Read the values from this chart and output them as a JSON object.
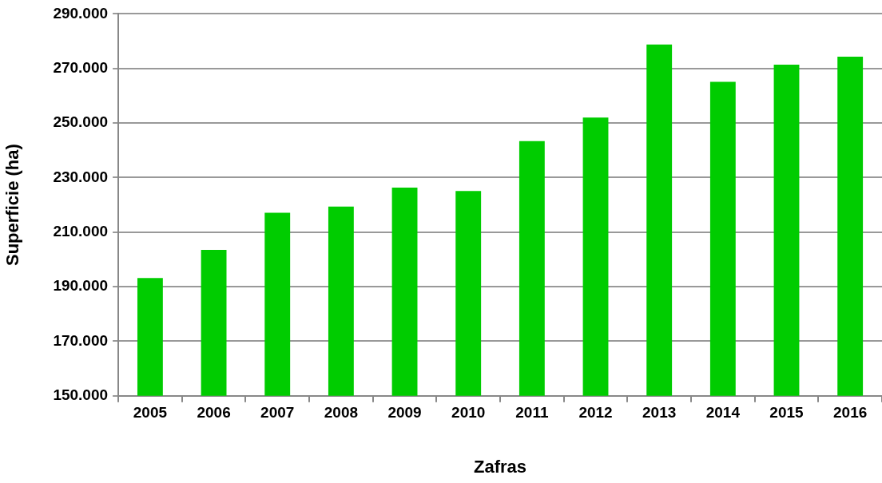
{
  "chart_data": {
    "type": "bar",
    "xlabel": "Zafras",
    "ylabel": "Superficie (ha)",
    "categories": [
      "2005",
      "2006",
      "2007",
      "2008",
      "2009",
      "2010",
      "2011",
      "2012",
      "2013",
      "2014",
      "2015",
      "2016"
    ],
    "values": [
      193200,
      203500,
      217100,
      219400,
      226300,
      225100,
      243400,
      252000,
      278800,
      265100,
      271400,
      274300
    ],
    "color": "#00cc00",
    "ylim": [
      150000,
      290000
    ],
    "yticks": [
      {
        "value": 150000,
        "label": "150.000"
      },
      {
        "value": 170000,
        "label": "170.000"
      },
      {
        "value": 190000,
        "label": "190.000"
      },
      {
        "value": 210000,
        "label": "210.000"
      },
      {
        "value": 230000,
        "label": "230.000"
      },
      {
        "value": 250000,
        "label": "250.000"
      },
      {
        "value": 270000,
        "label": "270.000"
      },
      {
        "value": 290000,
        "label": "290.000"
      }
    ],
    "grid": "y",
    "legend": false
  }
}
